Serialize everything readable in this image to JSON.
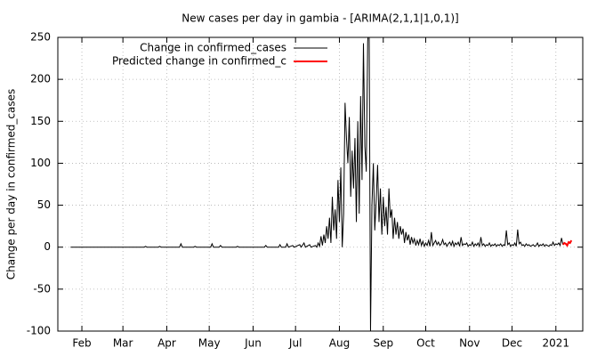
{
  "chart_data": {
    "type": "line",
    "title": "New cases per day in gambia -  [ARIMA(2,1,1|1,0,1)]",
    "ylabel": "Change per day in confirmed_cases",
    "xlim": [
      14,
      385
    ],
    "xticks": [
      {
        "value": 31,
        "label": "Feb"
      },
      {
        "value": 60,
        "label": "Mar"
      },
      {
        "value": 91,
        "label": "Apr"
      },
      {
        "value": 121,
        "label": "May"
      },
      {
        "value": 152,
        "label": "Jun"
      },
      {
        "value": 182,
        "label": "Jul"
      },
      {
        "value": 213,
        "label": "Aug"
      },
      {
        "value": 244,
        "label": "Sep"
      },
      {
        "value": 274,
        "label": "Oct"
      },
      {
        "value": 305,
        "label": "Nov"
      },
      {
        "value": 335,
        "label": "Dec"
      },
      {
        "value": 366,
        "label": "2021"
      }
    ],
    "ylim": [
      -100,
      250
    ],
    "yticks": [
      -100,
      -50,
      0,
      50,
      100,
      150,
      200,
      250
    ],
    "grid": true,
    "legend": "top-left",
    "series": [
      {
        "name": "Change in confirmed_cases",
        "color": "#000000",
        "x": [
          23,
          75,
          76,
          77,
          85,
          86,
          87,
          100,
          101,
          102,
          110,
          111,
          112,
          122,
          123,
          124,
          128,
          129,
          130,
          140,
          141,
          142,
          160,
          161,
          162,
          170,
          171,
          172,
          175,
          176,
          177,
          180,
          181,
          185,
          186,
          188,
          189,
          192,
          193,
          196,
          197,
          198,
          199,
          200,
          201,
          202,
          203,
          204,
          205,
          206,
          207,
          208,
          209,
          210,
          211,
          212,
          213,
          214,
          215,
          216,
          217,
          218,
          219,
          220,
          221,
          222,
          223,
          224,
          225,
          226,
          227,
          228,
          229,
          230,
          231,
          232,
          233,
          234,
          235,
          236,
          237,
          238,
          239,
          240,
          241,
          242,
          243,
          244,
          245,
          246,
          247,
          248,
          249,
          250,
          251,
          252,
          253,
          254,
          255,
          256,
          257,
          258,
          259,
          260,
          261,
          262,
          263,
          264,
          265,
          266,
          267,
          268,
          269,
          270,
          271,
          272,
          273,
          274,
          275,
          276,
          277,
          278,
          279,
          280,
          281,
          282,
          283,
          284,
          285,
          286,
          287,
          288,
          289,
          290,
          291,
          292,
          293,
          294,
          295,
          296,
          297,
          298,
          299,
          300,
          301,
          302,
          303,
          304,
          305,
          306,
          307,
          308,
          309,
          310,
          311,
          312,
          313,
          314,
          315,
          316,
          317,
          318,
          319,
          320,
          321,
          322,
          323,
          324,
          325,
          326,
          327,
          328,
          329,
          330,
          331,
          332,
          333,
          334,
          335,
          336,
          337,
          338,
          339,
          340,
          341,
          342,
          343,
          344,
          345,
          346,
          347,
          348,
          349,
          350,
          351,
          352,
          353,
          354,
          355,
          356,
          357,
          358,
          359,
          360,
          361,
          362,
          363,
          364,
          365,
          366,
          367,
          368,
          369,
          370,
          371
        ],
        "values": [
          0,
          0,
          1,
          0,
          0,
          1,
          0,
          0,
          4,
          0,
          0,
          1,
          0,
          0,
          4,
          0,
          0,
          2,
          0,
          0,
          1,
          0,
          0,
          2,
          0,
          0,
          3,
          0,
          0,
          4,
          0,
          2,
          0,
          3,
          0,
          5,
          0,
          3,
          0,
          2,
          0,
          5,
          1,
          13,
          2,
          15,
          5,
          25,
          10,
          35,
          5,
          60,
          20,
          45,
          10,
          80,
          30,
          95,
          0,
          40,
          172,
          130,
          100,
          155,
          60,
          115,
          70,
          130,
          30,
          150,
          40,
          180,
          80,
          243,
          120,
          90,
          245,
          270,
          -100,
          50,
          100,
          20,
          55,
          98,
          30,
          70,
          15,
          60,
          25,
          48,
          15,
          70,
          35,
          45,
          10,
          35,
          15,
          30,
          10,
          25,
          15,
          22,
          5,
          18,
          8,
          15,
          3,
          12,
          5,
          10,
          2,
          8,
          3,
          10,
          2,
          7,
          1,
          5,
          2,
          8,
          1,
          18,
          2,
          5,
          8,
          3,
          6,
          2,
          4,
          9,
          3,
          5,
          1,
          4,
          6,
          2,
          7,
          1,
          5,
          3,
          6,
          1,
          12,
          2,
          4,
          3,
          5,
          1,
          3,
          2,
          6,
          1,
          4,
          2,
          5,
          1,
          12,
          2,
          4,
          1,
          3,
          2,
          5,
          1,
          3,
          2,
          4,
          1,
          3,
          2,
          4,
          1,
          3,
          2,
          20,
          3,
          5,
          1,
          3,
          2,
          5,
          1,
          21,
          4,
          6,
          2,
          3,
          1,
          4,
          2,
          3,
          1,
          2,
          3,
          1,
          2,
          5,
          1,
          3,
          2,
          4,
          1,
          3,
          2,
          1,
          3,
          2,
          6,
          2,
          4,
          3,
          5,
          2,
          11,
          3
        ]
      },
      {
        "name": "Predicted change in confirmed_c",
        "color": "#ff0000",
        "x": [
          371,
          372,
          373,
          374,
          375,
          376,
          377
        ],
        "values": [
          3,
          5,
          4,
          2,
          6,
          5,
          8
        ]
      }
    ]
  }
}
